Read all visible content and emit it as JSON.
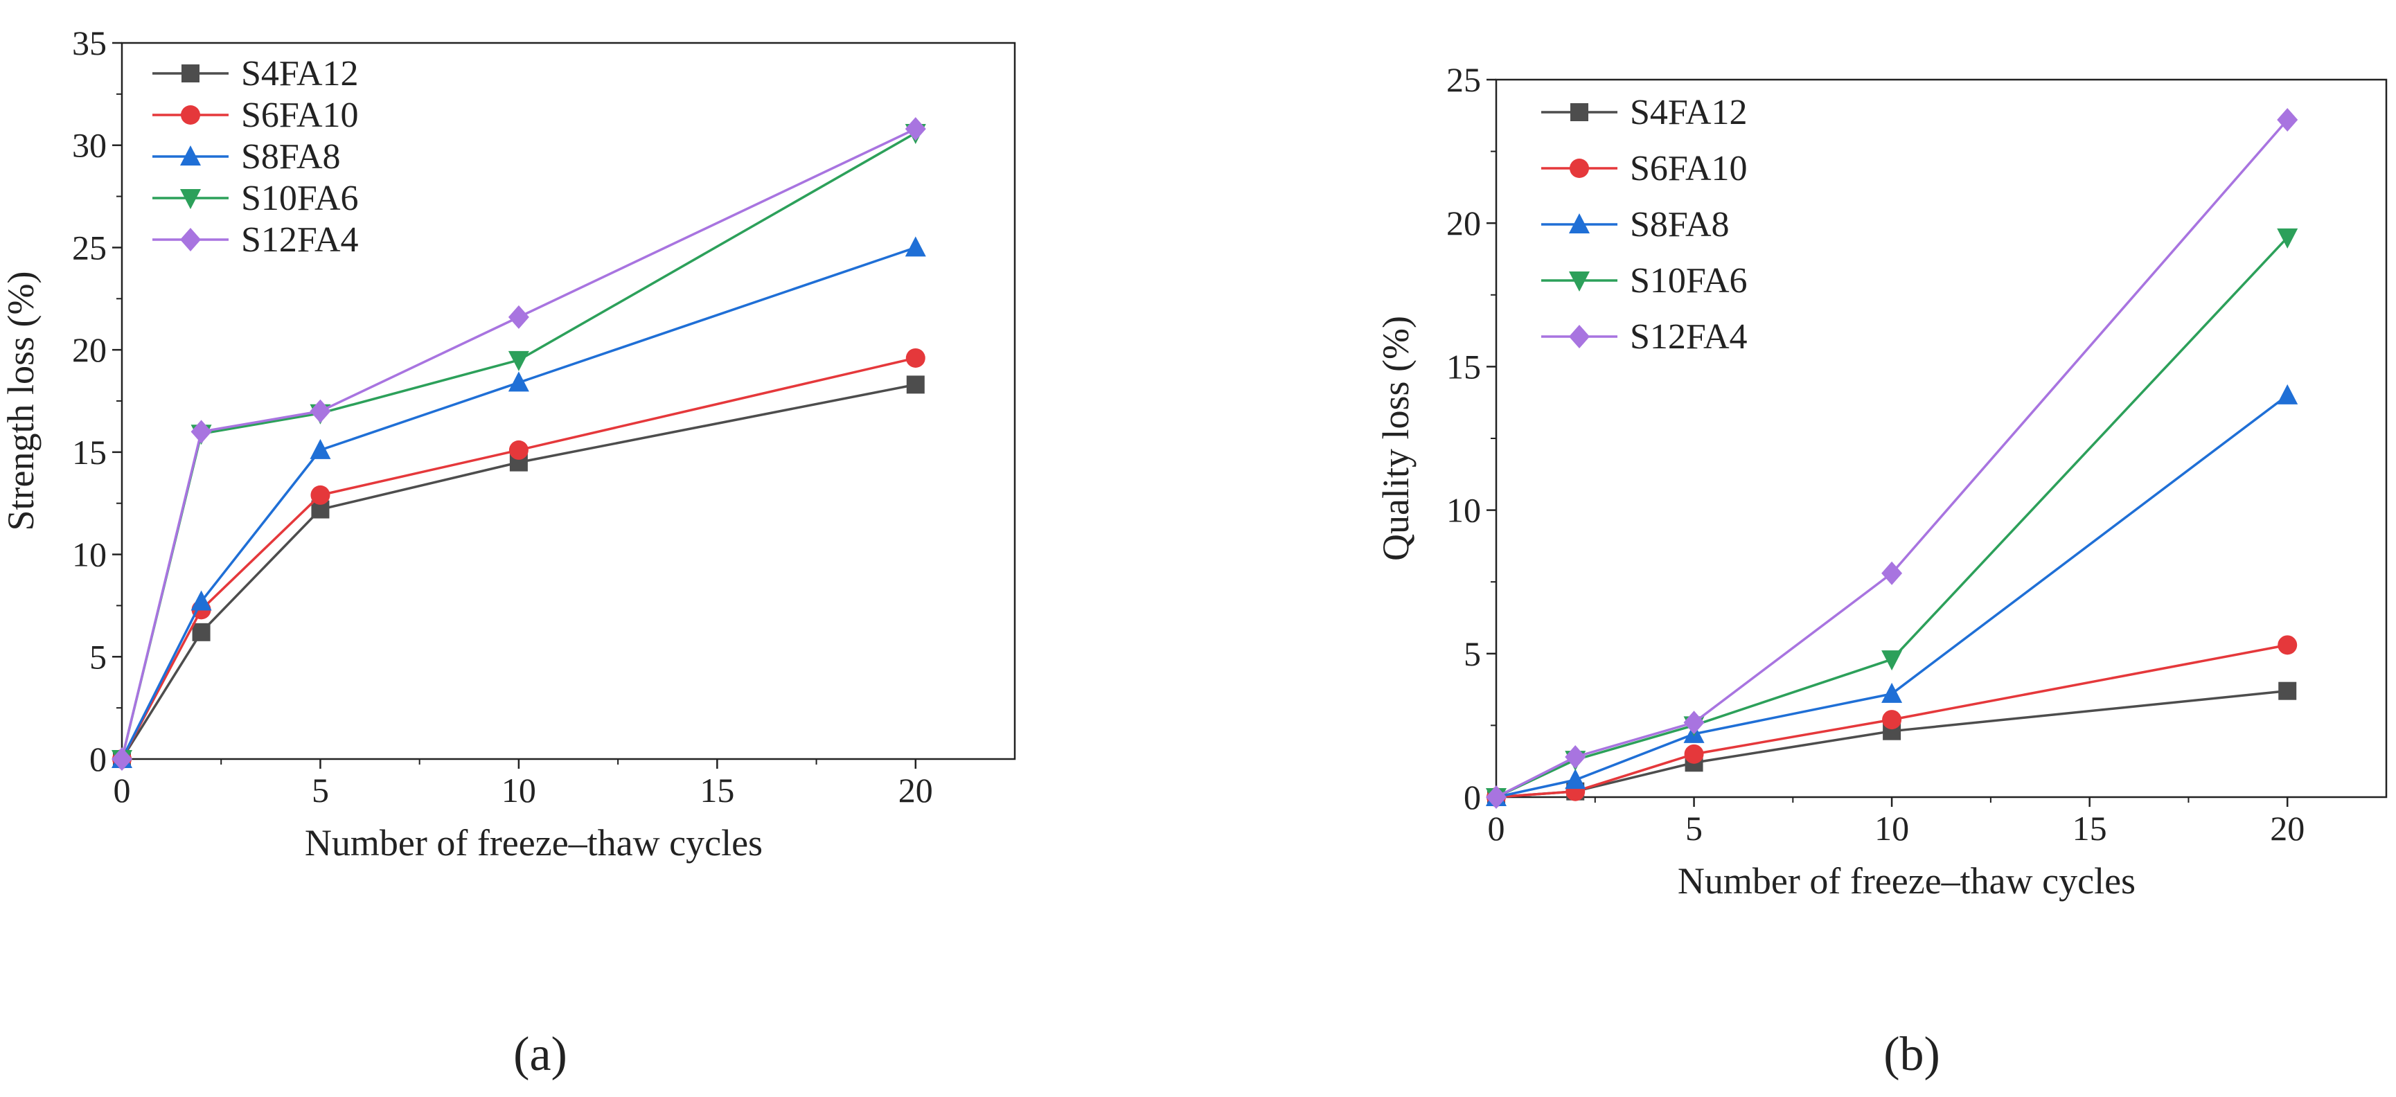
{
  "chart_data": [
    {
      "type": "line",
      "panel_label": "(a)",
      "title": "",
      "xlabel": "Number of freeze–thaw cycles",
      "ylabel": "Strength loss (%)",
      "xlim": [
        0,
        22.5
      ],
      "ylim": [
        0,
        35
      ],
      "xticks": [
        0,
        5,
        10,
        15,
        20
      ],
      "yticks": [
        0,
        5,
        10,
        15,
        20,
        25,
        30,
        35
      ],
      "x": [
        0,
        2,
        5,
        10,
        20
      ],
      "legend_position": "top-left",
      "grid": false,
      "series": [
        {
          "name": "S4FA12",
          "color": "#4d4d4d",
          "marker": "square",
          "values": [
            0,
            6.2,
            12.2,
            14.5,
            18.3
          ]
        },
        {
          "name": "S6FA10",
          "color": "#e5383b",
          "marker": "circle",
          "values": [
            0,
            7.3,
            12.9,
            15.1,
            19.6
          ]
        },
        {
          "name": "S8FA8",
          "color": "#1f6fd6",
          "marker": "triangle-up",
          "values": [
            0,
            7.7,
            15.1,
            18.4,
            25.0
          ]
        },
        {
          "name": "S10FA6",
          "color": "#2ca05a",
          "marker": "triangle-down",
          "values": [
            0,
            15.9,
            16.9,
            19.5,
            30.6
          ]
        },
        {
          "name": "S12FA4",
          "color": "#a874e0",
          "marker": "diamond",
          "values": [
            0,
            16.0,
            17.0,
            21.6,
            30.8
          ]
        }
      ]
    },
    {
      "type": "line",
      "panel_label": "(b)",
      "title": "",
      "xlabel": "Number of freeze–thaw cycles",
      "ylabel": "Quality loss (%)",
      "xlim": [
        0,
        22.5
      ],
      "ylim": [
        0,
        25
      ],
      "xticks": [
        0,
        5,
        10,
        15,
        20
      ],
      "yticks": [
        0,
        5,
        10,
        15,
        20,
        25
      ],
      "x": [
        0,
        2,
        5,
        10,
        20
      ],
      "legend_position": "top-left",
      "grid": false,
      "series": [
        {
          "name": "S4FA12",
          "color": "#4d4d4d",
          "marker": "square",
          "values": [
            0,
            0.2,
            1.2,
            2.3,
            3.7
          ]
        },
        {
          "name": "S6FA10",
          "color": "#e5383b",
          "marker": "circle",
          "values": [
            0,
            0.2,
            1.5,
            2.7,
            5.3
          ]
        },
        {
          "name": "S8FA8",
          "color": "#1f6fd6",
          "marker": "triangle-up",
          "values": [
            0,
            0.6,
            2.2,
            3.6,
            14.0
          ]
        },
        {
          "name": "S10FA6",
          "color": "#2ca05a",
          "marker": "triangle-down",
          "values": [
            0,
            1.3,
            2.5,
            4.8,
            19.5
          ]
        },
        {
          "name": "S12FA4",
          "color": "#a874e0",
          "marker": "diamond",
          "values": [
            0,
            1.4,
            2.6,
            7.8,
            23.6
          ]
        }
      ]
    }
  ]
}
